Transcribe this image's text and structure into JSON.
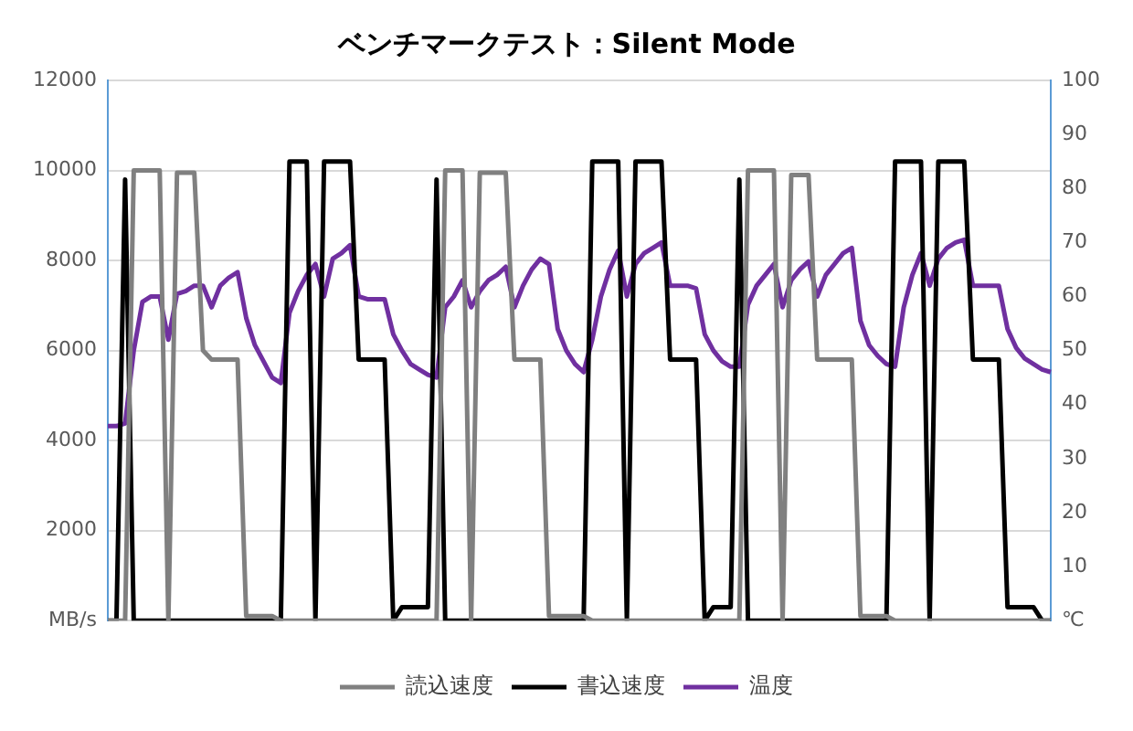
{
  "chart_data": {
    "type": "line",
    "title": "ベンチマークテスト：Silent Mode",
    "categories": [
      null,
      null,
      null,
      null,
      null,
      null,
      null,
      null,
      null,
      null,
      null,
      null,
      null,
      null,
      null,
      null,
      null,
      null,
      null,
      null,
      null,
      null,
      null,
      null,
      null,
      null,
      null,
      null,
      null,
      null,
      null,
      null,
      null,
      null,
      null,
      null,
      null,
      null,
      null,
      null,
      null,
      null,
      null,
      null,
      null,
      null,
      null,
      null,
      null,
      null,
      null,
      null,
      null,
      null,
      null,
      null,
      null,
      null,
      null,
      null,
      null,
      null,
      null,
      null,
      null,
      null,
      null,
      null,
      null,
      null,
      null,
      null,
      null,
      null,
      null,
      null,
      null,
      null,
      null,
      null,
      null,
      null,
      null,
      null,
      null,
      null,
      null,
      null,
      null,
      null,
      null,
      null,
      null,
      null,
      null,
      null,
      null,
      null,
      null,
      null,
      null,
      null,
      null,
      null,
      null,
      null,
      null,
      null,
      null,
      null
    ],
    "series": [
      {
        "name": "読込速度",
        "color": "#808080",
        "values": [
          0,
          0,
          0,
          10000,
          10000,
          10000,
          10000,
          0,
          9950,
          9950,
          9950,
          6000,
          5800,
          5800,
          5800,
          5800,
          100,
          100,
          100,
          100,
          0,
          0,
          0,
          0,
          0,
          0,
          0,
          0,
          0,
          0,
          0,
          0,
          0,
          0,
          0,
          0,
          0,
          0,
          0,
          10000,
          10000,
          10000,
          0,
          9950,
          9950,
          9950,
          9950,
          5800,
          5800,
          5800,
          5800,
          100,
          100,
          100,
          100,
          100,
          0,
          0,
          0,
          0,
          0,
          0,
          0,
          0,
          0,
          0,
          0,
          0,
          0,
          0,
          0,
          0,
          0,
          0,
          10000,
          10000,
          10000,
          10000,
          0,
          9900,
          9900,
          9900,
          5800,
          5800,
          5800,
          5800,
          5800,
          100,
          100,
          100,
          100,
          0,
          0,
          0,
          0,
          0,
          0,
          0,
          0,
          0,
          0,
          0,
          0,
          0,
          0,
          0,
          0,
          0,
          0,
          0
        ]
      },
      {
        "name": "書込速度",
        "color": "#000000",
        "values": [
          0,
          0,
          9800,
          0,
          0,
          0,
          0,
          0,
          0,
          0,
          0,
          0,
          0,
          0,
          0,
          0,
          0,
          0,
          0,
          0,
          0,
          10200,
          10200,
          10200,
          0,
          10200,
          10200,
          10200,
          10200,
          5800,
          5800,
          5800,
          5800,
          0,
          300,
          300,
          300,
          300,
          9800,
          0,
          0,
          0,
          0,
          0,
          0,
          0,
          0,
          0,
          0,
          0,
          0,
          0,
          0,
          0,
          0,
          0,
          10200,
          10200,
          10200,
          10200,
          0,
          10200,
          10200,
          10200,
          10200,
          5800,
          5800,
          5800,
          5800,
          0,
          300,
          300,
          300,
          9800,
          0,
          0,
          0,
          0,
          0,
          0,
          0,
          0,
          0,
          0,
          0,
          0,
          0,
          0,
          0,
          0,
          0,
          10200,
          10200,
          10200,
          10200,
          0,
          10200,
          10200,
          10200,
          10200,
          5800,
          5800,
          5800,
          5800,
          300,
          300,
          300,
          300,
          0,
          0
        ]
      },
      {
        "name": "温度",
        "color": "#7030a0",
        "axis": "y2",
        "values": [
          36,
          36,
          36.5,
          50,
          59,
          60,
          60,
          52,
          60.5,
          61,
          62,
          62,
          58,
          62,
          63.5,
          64.5,
          56,
          51,
          48,
          45,
          44,
          57,
          61,
          64,
          66,
          60,
          67,
          68,
          69.5,
          60,
          59.5,
          59.5,
          59.5,
          53,
          50,
          47.5,
          46.5,
          45.5,
          45,
          58,
          60,
          63,
          58,
          61,
          63,
          64,
          65.5,
          58,
          62,
          65,
          67,
          66,
          54,
          50,
          47.5,
          46,
          52,
          60,
          65,
          68.5,
          60,
          66,
          68,
          69,
          70,
          62,
          62,
          62,
          61.5,
          53,
          50,
          48,
          47,
          47,
          58.5,
          62,
          64,
          66,
          58,
          63,
          65,
          66.5,
          60,
          64,
          66,
          68,
          69,
          55.5,
          51,
          49,
          47.5,
          47,
          58,
          64,
          68,
          62,
          67,
          69,
          70,
          70.5,
          62,
          62,
          62,
          62,
          54,
          50.5,
          48.5,
          47.5,
          46.5,
          46
        ]
      }
    ],
    "ylim": [
      0,
      12000
    ],
    "yticks": [
      {
        "value": 0,
        "label": "MB/s"
      },
      2000,
      4000,
      6000,
      8000,
      10000,
      12000
    ],
    "y2lim": [
      0,
      100
    ],
    "y2ticks": [
      {
        "value": 0,
        "label": "℃"
      },
      10,
      20,
      30,
      40,
      50,
      60,
      70,
      80,
      90,
      100
    ],
    "grid": "y",
    "legend": "bottom",
    "marker": "none",
    "line_style": "solid"
  }
}
